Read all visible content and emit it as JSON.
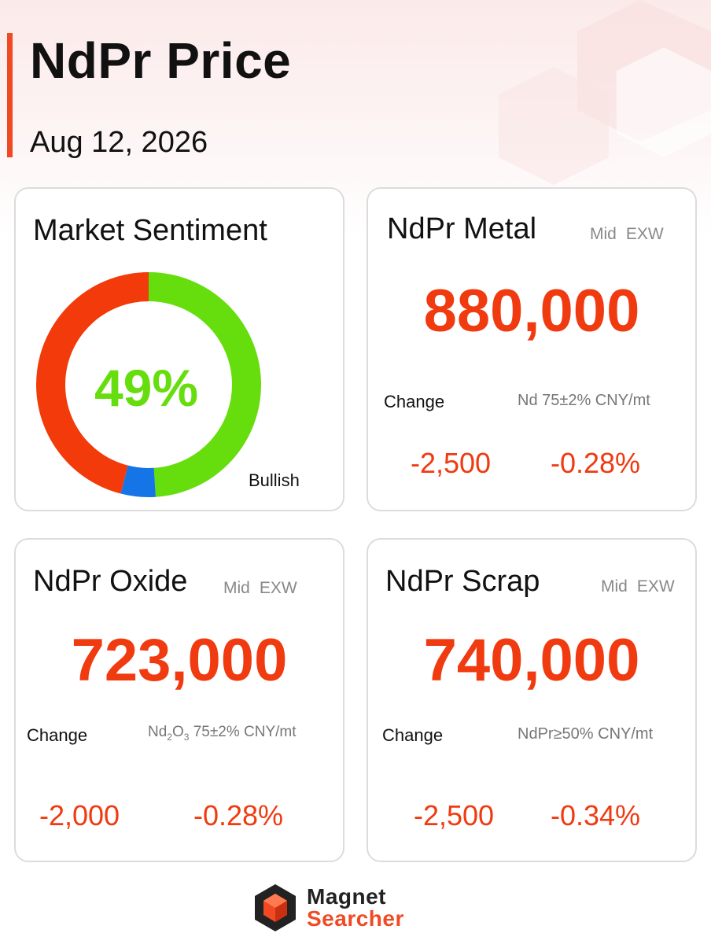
{
  "header": {
    "title": "NdPr Price",
    "date": "Aug 12, 2026"
  },
  "colors": {
    "accent": "#f04a25",
    "price_red": "#f03a10",
    "bullish_green": "#66dd0c",
    "bearish_red": "#f23a0a",
    "neutral_blue": "#1575e6"
  },
  "sentiment": {
    "title": "Market Sentiment",
    "percent_label": "49%",
    "label": "Bullish",
    "segments": [
      {
        "name": "bullish",
        "fraction": 0.49,
        "color": "#66dd0c"
      },
      {
        "name": "neutral",
        "fraction": 0.05,
        "color": "#1575e6"
      },
      {
        "name": "bearish",
        "fraction": 0.46,
        "color": "#f23a0a"
      }
    ]
  },
  "metal": {
    "title": "NdPr Metal",
    "tag1": "Mid",
    "tag2": "EXW",
    "price": "880,000",
    "change_label": "Change",
    "spec": "Nd 75±2% CNY/mt",
    "change_abs": "-2,500",
    "change_pct": "-0.28%"
  },
  "oxide": {
    "title": "NdPr Oxide",
    "tag1": "Mid",
    "tag2": "EXW",
    "price": "723,000",
    "change_label": "Change",
    "spec_prefix": "Nd",
    "spec_sub1": "2",
    "spec_mid": "O",
    "spec_sub2": "3",
    "spec_rest": " 75±2% CNY/mt",
    "change_abs": "-2,000",
    "change_pct": "-0.28%"
  },
  "scrap": {
    "title": "NdPr Scrap",
    "tag1": "Mid",
    "tag2": "EXW",
    "price": "740,000",
    "change_label": "Change",
    "spec": "NdPr≥50% CNY/mt",
    "change_abs": "-2,500",
    "change_pct": "-0.34%"
  },
  "logo": {
    "line1": "Magnet",
    "line2": "Searcher"
  }
}
